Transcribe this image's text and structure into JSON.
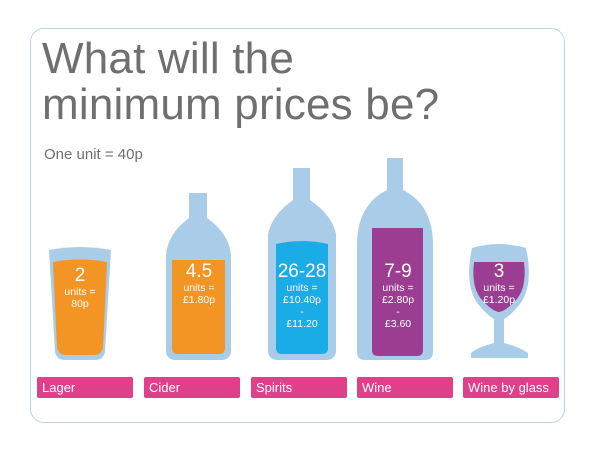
{
  "title": "What will the minimum prices be?",
  "subtitle": "One unit = 40p",
  "colors": {
    "glass": "#a9cde9",
    "lager": "#f29524",
    "cider": "#f29524",
    "spirits": "#1aace6",
    "wine": "#9b3d91",
    "label": "#e0408a"
  },
  "drinks": [
    {
      "label": "Lager",
      "icon": "pint-glass-icon",
      "units": "2",
      "lines": [
        "units =",
        "80p"
      ]
    },
    {
      "label": "Cider",
      "icon": "cider-bottle-icon",
      "units": "4.5",
      "lines": [
        "units =",
        "£1.80p"
      ]
    },
    {
      "label": "Spirits",
      "icon": "spirits-bottle-icon",
      "units": "26-28",
      "lines": [
        "units =",
        "£10.40p",
        "-",
        "£11.20"
      ]
    },
    {
      "label": "Wine",
      "icon": "wine-bottle-icon",
      "units": "7-9",
      "lines": [
        "units =",
        "£2.80p",
        "-",
        "£3.60"
      ]
    },
    {
      "label": "Wine by glass",
      "icon": "wine-glass-icon",
      "units": "3",
      "lines": [
        "units =",
        "£1.20p"
      ]
    }
  ]
}
